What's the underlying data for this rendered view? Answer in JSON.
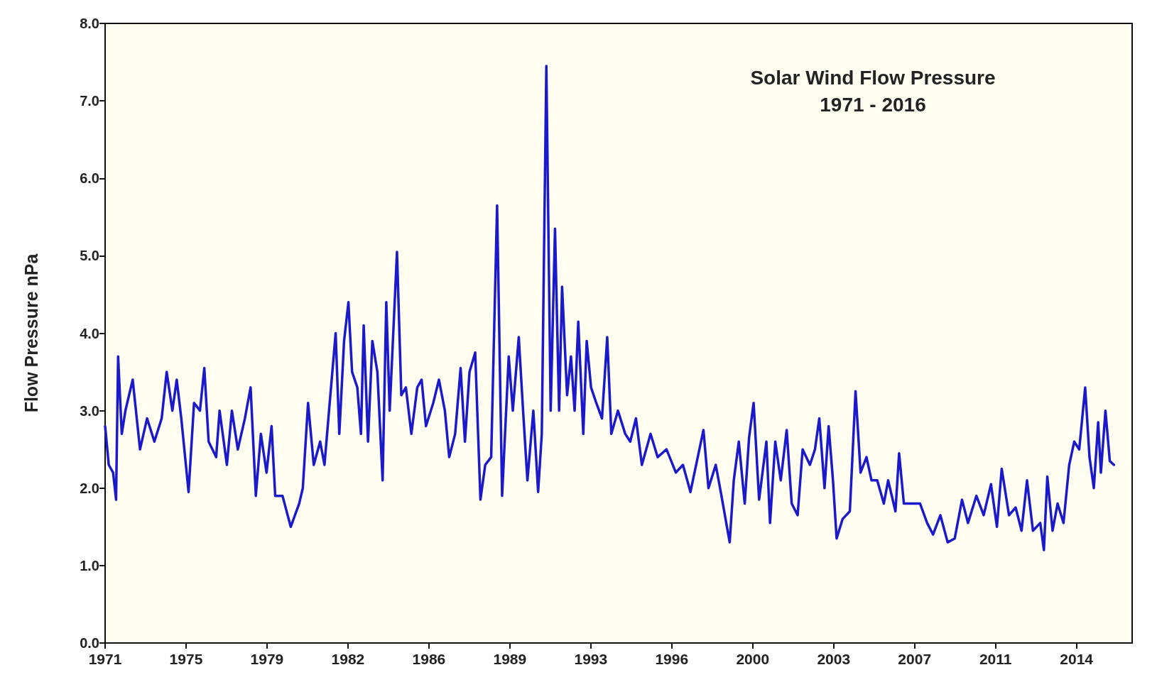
{
  "chart_data": {
    "type": "line",
    "title": "Solar Wind Flow Pressure",
    "subtitle": "1971 - 2016",
    "ylabel": "Flow Pressure nPa",
    "x": [
      1971.48,
      1971.64,
      1971.83,
      1971.96,
      1972.05,
      1972.21,
      1972.37,
      1972.69,
      1973.01,
      1973.32,
      1973.64,
      1973.96,
      1974.18,
      1974.43,
      1974.62,
      1974.82,
      1975.14,
      1975.38,
      1975.64,
      1975.83,
      1976.02,
      1976.35,
      1976.5,
      1976.82,
      1977.04,
      1977.3,
      1977.61,
      1977.86,
      1978.09,
      1978.31,
      1978.56,
      1978.78,
      1978.94,
      1979.26,
      1979.62,
      1979.99,
      1980.15,
      1980.38,
      1980.63,
      1980.91,
      1981.1,
      1981.3,
      1981.59,
      1981.75,
      1981.96,
      1982.15,
      1982.31,
      1982.54,
      1982.7,
      1982.82,
      1983.01,
      1983.2,
      1983.42,
      1983.65,
      1983.81,
      1983.96,
      1984.28,
      1984.47,
      1984.67,
      1984.91,
      1985.17,
      1985.36,
      1985.55,
      1985.87,
      1986.12,
      1986.38,
      1986.57,
      1986.83,
      1987.07,
      1987.26,
      1987.46,
      1987.71,
      1987.94,
      1988.15,
      1988.41,
      1988.67,
      1988.89,
      1989.18,
      1989.36,
      1989.62,
      1989.81,
      1990.0,
      1990.26,
      1990.47,
      1990.63,
      1990.83,
      1991.02,
      1991.21,
      1991.39,
      1991.52,
      1991.74,
      1991.91,
      1992.07,
      1992.23,
      1992.45,
      1992.6,
      1992.79,
      1993.02,
      1993.27,
      1993.5,
      1993.68,
      1993.97,
      1994.29,
      1994.51,
      1994.76,
      1995.02,
      1995.4,
      1995.71,
      1996.1,
      1996.51,
      1996.82,
      1997.15,
      1997.47,
      1997.72,
      1997.94,
      1998.26,
      1998.51,
      1998.87,
      1999.05,
      1999.27,
      1999.53,
      1999.72,
      1999.92,
      2000.16,
      2000.48,
      2000.64,
      2000.87,
      2001.11,
      2001.37,
      2001.59,
      2001.85,
      2002.07,
      2002.39,
      2002.61,
      2002.8,
      2003.03,
      2003.21,
      2003.4,
      2003.56,
      2003.82,
      2004.14,
      2004.39,
      2004.61,
      2004.87,
      2005.09,
      2005.34,
      2005.63,
      2005.82,
      2006.14,
      2006.3,
      2006.51,
      2006.83,
      2007.22,
      2007.53,
      2007.79,
      2008.11,
      2008.43,
      2008.74,
      2009.06,
      2009.32,
      2009.69,
      2010.01,
      2010.33,
      2010.59,
      2010.8,
      2011.12,
      2011.41,
      2011.67,
      2011.91,
      2012.17,
      2012.49,
      2012.65,
      2012.8,
      2013.03,
      2013.25,
      2013.51,
      2013.76,
      2013.98,
      2014.2,
      2014.46,
      2014.65,
      2014.84,
      2015.03,
      2015.15,
      2015.35,
      2015.54,
      2015.72
    ],
    "series": [
      {
        "color": "#1a1acc",
        "values": [
          2.8,
          2.3,
          2.2,
          1.85,
          3.7,
          2.7,
          3.0,
          3.4,
          2.5,
          2.9,
          2.6,
          2.9,
          3.5,
          3.0,
          3.4,
          2.9,
          1.95,
          3.1,
          3.0,
          3.55,
          2.6,
          2.4,
          3.0,
          2.3,
          3.0,
          2.5,
          2.9,
          3.3,
          1.9,
          2.7,
          2.2,
          2.8,
          1.9,
          1.9,
          1.5,
          1.8,
          2.0,
          3.1,
          2.3,
          2.6,
          2.3,
          3.0,
          4.0,
          2.7,
          3.9,
          4.4,
          3.5,
          3.3,
          2.7,
          4.1,
          2.6,
          3.9,
          3.5,
          2.1,
          4.4,
          3.0,
          5.05,
          3.2,
          3.3,
          2.7,
          3.3,
          3.4,
          2.8,
          3.1,
          3.4,
          3.0,
          2.4,
          2.7,
          3.55,
          2.6,
          3.5,
          3.75,
          1.85,
          2.3,
          2.4,
          5.65,
          1.9,
          3.7,
          3.0,
          3.95,
          3.0,
          2.1,
          3.0,
          1.95,
          2.7,
          7.45,
          3.0,
          5.35,
          3.0,
          4.6,
          3.2,
          3.7,
          3.0,
          4.15,
          2.7,
          3.9,
          3.3,
          3.1,
          2.9,
          3.95,
          2.7,
          3.0,
          2.7,
          2.6,
          2.9,
          2.3,
          2.7,
          2.4,
          2.5,
          2.2,
          2.3,
          1.95,
          2.4,
          2.75,
          2.0,
          2.3,
          1.9,
          1.3,
          2.1,
          2.6,
          1.8,
          2.65,
          3.1,
          1.85,
          2.6,
          1.55,
          2.6,
          2.1,
          2.75,
          1.8,
          1.65,
          2.5,
          2.3,
          2.5,
          2.9,
          2.0,
          2.8,
          2.1,
          1.35,
          1.6,
          1.7,
          3.25,
          2.2,
          2.4,
          2.1,
          2.1,
          1.8,
          2.1,
          1.7,
          2.45,
          1.8,
          1.8,
          1.8,
          1.55,
          1.4,
          1.65,
          1.3,
          1.35,
          1.85,
          1.55,
          1.9,
          1.65,
          2.05,
          1.5,
          2.25,
          1.65,
          1.75,
          1.45,
          2.1,
          1.45,
          1.55,
          1.2,
          2.15,
          1.45,
          1.8,
          1.55,
          2.3,
          2.6,
          2.5,
          3.3,
          2.4,
          2.0,
          2.85,
          2.2,
          3.0,
          2.35,
          2.3
        ]
      }
    ],
    "xlim": [
      1971.48,
      2016.52
    ],
    "xticks": [
      {
        "value": 1971.48,
        "label": "1971"
      },
      {
        "value": 1975.03,
        "label": "1975"
      },
      {
        "value": 1978.58,
        "label": "1979"
      },
      {
        "value": 1982.13,
        "label": "1982"
      },
      {
        "value": 1985.68,
        "label": "1986"
      },
      {
        "value": 1989.23,
        "label": "1989"
      },
      {
        "value": 1992.78,
        "label": "1993"
      },
      {
        "value": 1996.33,
        "label": "1996"
      },
      {
        "value": 1999.88,
        "label": "2000"
      },
      {
        "value": 2003.43,
        "label": "2003"
      },
      {
        "value": 2006.98,
        "label": "2007"
      },
      {
        "value": 2010.53,
        "label": "2011"
      },
      {
        "value": 2014.08,
        "label": "2014"
      }
    ],
    "ylim": [
      0,
      8
    ],
    "yticks": [
      {
        "value": 0,
        "label": "0.0"
      },
      {
        "value": 1,
        "label": "1.0"
      },
      {
        "value": 2,
        "label": "2.0"
      },
      {
        "value": 3,
        "label": "3.0"
      },
      {
        "value": 4,
        "label": "4.0"
      },
      {
        "value": 5,
        "label": "5.0"
      },
      {
        "value": 6,
        "label": "6.0"
      },
      {
        "value": 7,
        "label": "7.0"
      },
      {
        "value": 8,
        "label": "8.0"
      }
    ],
    "grid": false,
    "marker": "none",
    "line_style": "solid"
  }
}
